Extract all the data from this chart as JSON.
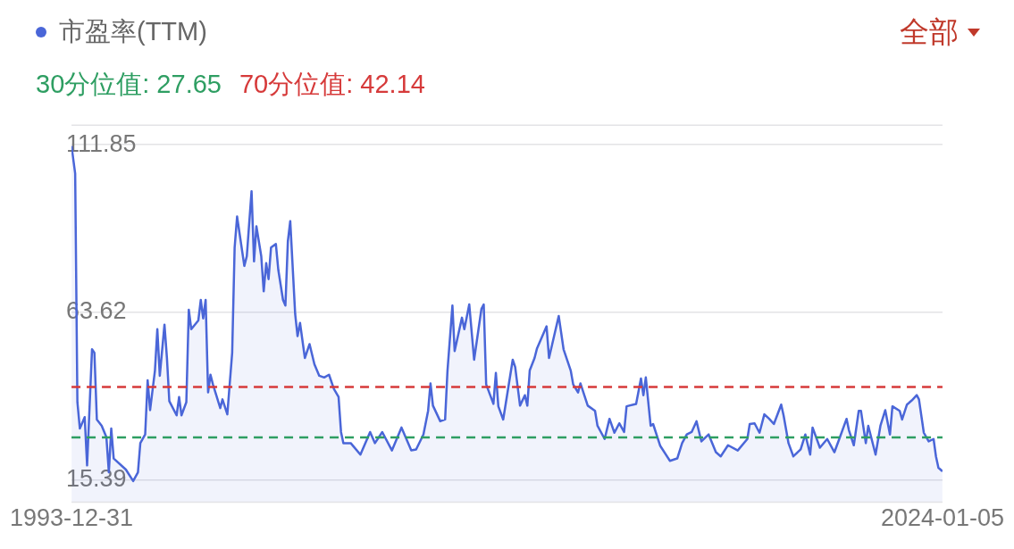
{
  "chart_data": {
    "type": "area",
    "annotations": [
      "全部"
    ],
    "x": [
      "1993-12-31",
      "1994-02",
      "1994-03",
      "1994-04",
      "1994-06",
      "1994-07",
      "1994-09",
      "1994-10",
      "1994-11",
      "1995-01",
      "1995-03",
      "1995-04",
      "1995-05",
      "1995-06",
      "1995-11",
      "1996-02",
      "1996-04",
      "1996-05",
      "1996-07",
      "1996-08",
      "1996-09",
      "1996-11",
      "1996-12",
      "1997-01",
      "1997-03",
      "1997-04",
      "1997-05",
      "1997-08",
      "1997-09",
      "1997-10",
      "1997-12",
      "1998-01",
      "1998-02",
      "1998-05",
      "1998-06",
      "1998-07",
      "1998-08",
      "1998-09",
      "1998-10",
      "1998-11",
      "1999-02",
      "1999-03",
      "1999-05",
      "1999-07",
      "1999-08",
      "1999-09",
      "1999-12",
      "2000-01",
      "2000-03",
      "2000-04",
      "2000-05",
      "2000-07",
      "2000-08",
      "2000-09",
      "2000-10",
      "2000-11",
      "2001-01",
      "2001-02",
      "2001-04",
      "2001-05",
      "2001-06",
      "2001-07",
      "2001-09",
      "2001-10",
      "2001-11",
      "2002-01",
      "2002-03",
      "2002-05",
      "2002-07",
      "2002-09",
      "2002-11",
      "2003-01",
      "2003-03",
      "2003-04",
      "2003-05",
      "2003-08",
      "2003-12",
      "2004-04",
      "2004-06",
      "2004-09",
      "2005-01",
      "2005-05",
      "2005-09",
      "2005-11",
      "2006-02",
      "2006-04",
      "2006-05",
      "2006-06",
      "2006-09",
      "2006-11",
      "2006-12",
      "2007-02",
      "2007-03",
      "2007-06",
      "2007-07",
      "2007-09",
      "2007-11",
      "2008-02",
      "2008-03",
      "2008-04",
      "2008-07",
      "2008-08",
      "2008-09",
      "2008-11",
      "2009-03",
      "2009-04",
      "2009-06",
      "2009-08",
      "2009-09",
      "2009-10",
      "2009-12",
      "2010-01",
      "2010-05",
      "2010-06",
      "2010-10",
      "2010-12",
      "2011-03",
      "2011-04",
      "2011-06",
      "2011-07",
      "2011-10",
      "2012-01",
      "2012-02",
      "2012-05",
      "2012-07",
      "2012-09",
      "2012-11",
      "2013-01",
      "2013-02",
      "2013-06",
      "2013-08",
      "2013-09",
      "2013-10",
      "2013-12",
      "2014-01",
      "2014-04",
      "2014-08",
      "2014-11",
      "2015-01",
      "2015-03",
      "2015-05",
      "2015-07",
      "2015-09",
      "2015-12",
      "2016-03",
      "2016-05",
      "2016-08",
      "2016-12",
      "2017-04",
      "2017-05",
      "2017-07",
      "2017-09",
      "2017-11",
      "2018-01",
      "2018-03",
      "2018-06",
      "2018-07",
      "2018-09",
      "2018-11",
      "2019-02",
      "2019-04",
      "2019-06",
      "2019-07",
      "2019-10",
      "2020-01",
      "2020-04",
      "2020-06",
      "2020-09",
      "2020-10",
      "2020-12",
      "2021-02",
      "2021-03",
      "2021-05",
      "2021-06",
      "2021-09",
      "2021-11",
      "2022-01",
      "2022-03",
      "2022-04",
      "2022-07",
      "2022-08",
      "2022-10",
      "2022-12",
      "2023-02",
      "2023-03",
      "2023-05",
      "2023-07",
      "2023-09",
      "2023-10",
      "2023-11",
      "2024-01-05"
    ],
    "series": [
      {
        "name": "市盈率(TTM)",
        "color": "#4a66d8",
        "values": [
          111.5,
          103.6,
          37.8,
          30.2,
          33.5,
          19.6,
          53.0,
          52,
          32.8,
          31,
          27.7,
          17.6,
          30.2,
          21.6,
          18.4,
          15.1,
          17.6,
          26,
          28.5,
          44.1,
          35.5,
          46.9,
          58.8,
          45.4,
          60.1,
          50.5,
          38.1,
          34.0,
          39.3,
          34,
          37.8,
          64.4,
          58.8,
          61.3,
          67.2,
          61.9,
          67.2,
          40.6,
          45.7,
          42.9,
          36.1,
          38.6,
          34.3,
          52,
          82.3,
          91.2,
          77.0,
          79.8,
          98.5,
          78.3,
          88.4,
          79.8,
          69.7,
          77.8,
          73.2,
          82.3,
          83.3,
          75.8,
          67.2,
          65.6,
          84.1,
          89.9,
          63.1,
          56.8,
          60.6,
          50.5,
          54.5,
          48.7,
          45.4,
          44.9,
          45.7,
          41.6,
          39.3,
          29.2,
          26,
          26,
          22.7,
          29.2,
          26,
          29.2,
          23.9,
          30.5,
          23.9,
          24.2,
          28.5,
          35.3,
          43.2,
          36.8,
          32.3,
          32.8,
          46.9,
          65.6,
          52.5,
          62.1,
          58.8,
          65.9,
          50,
          64.6,
          65.9,
          42.9,
          37.3,
          46.2,
          36.6,
          32.8,
          50,
          47.9,
          36.8,
          39.8,
          36.8,
          46.9,
          50.5,
          53.3,
          59.6,
          50.5,
          62.6,
          53,
          46.9,
          42.9,
          40.6,
          43.2,
          36.8,
          35.3,
          31,
          27.2,
          33,
          29,
          31.7,
          29.2,
          36.6,
          37.3,
          44.6,
          39.8,
          44.9,
          31,
          31.5,
          25.2,
          20.9,
          21.6,
          26,
          28.5,
          29.2,
          32.3,
          26.5,
          28.5,
          23.4,
          22.2,
          25.4,
          23.9,
          27.2,
          31.5,
          31.7,
          29,
          34.3,
          33,
          31.5,
          37.1,
          34,
          26,
          22.2,
          24.2,
          28.5,
          22.7,
          30.5,
          24.7,
          27.2,
          23.4,
          27.2,
          33,
          29.7,
          25.4,
          35.3,
          35.3,
          26,
          31,
          22.7,
          31,
          35.5,
          28.5,
          36.6,
          35.3,
          32.8,
          37.1,
          38.3,
          39.8,
          38.6,
          29,
          26.5,
          27.2,
          22.2,
          18.9,
          17.9
        ]
      }
    ],
    "xlim": [
      "1993-12-31",
      "2024-01-05"
    ],
    "xticks": [
      "1993-12-31",
      "2024-01-05"
    ],
    "ylim": [
      9,
      117.5
    ],
    "yticks": [
      15.39,
      63.62,
      111.85
    ],
    "ref_lines": [
      {
        "axis": "y",
        "value": 27.65,
        "label": "30分位值: 27.65",
        "color": "#2e9e62",
        "line_style": "dashed"
      },
      {
        "axis": "y",
        "value": 42.14,
        "label": "70分位值: 42.14",
        "color": "#d63a3a",
        "line_style": "dashed"
      }
    ],
    "grid": "y",
    "legend": "top left",
    "marker": "none",
    "line_style": "solid"
  }
}
